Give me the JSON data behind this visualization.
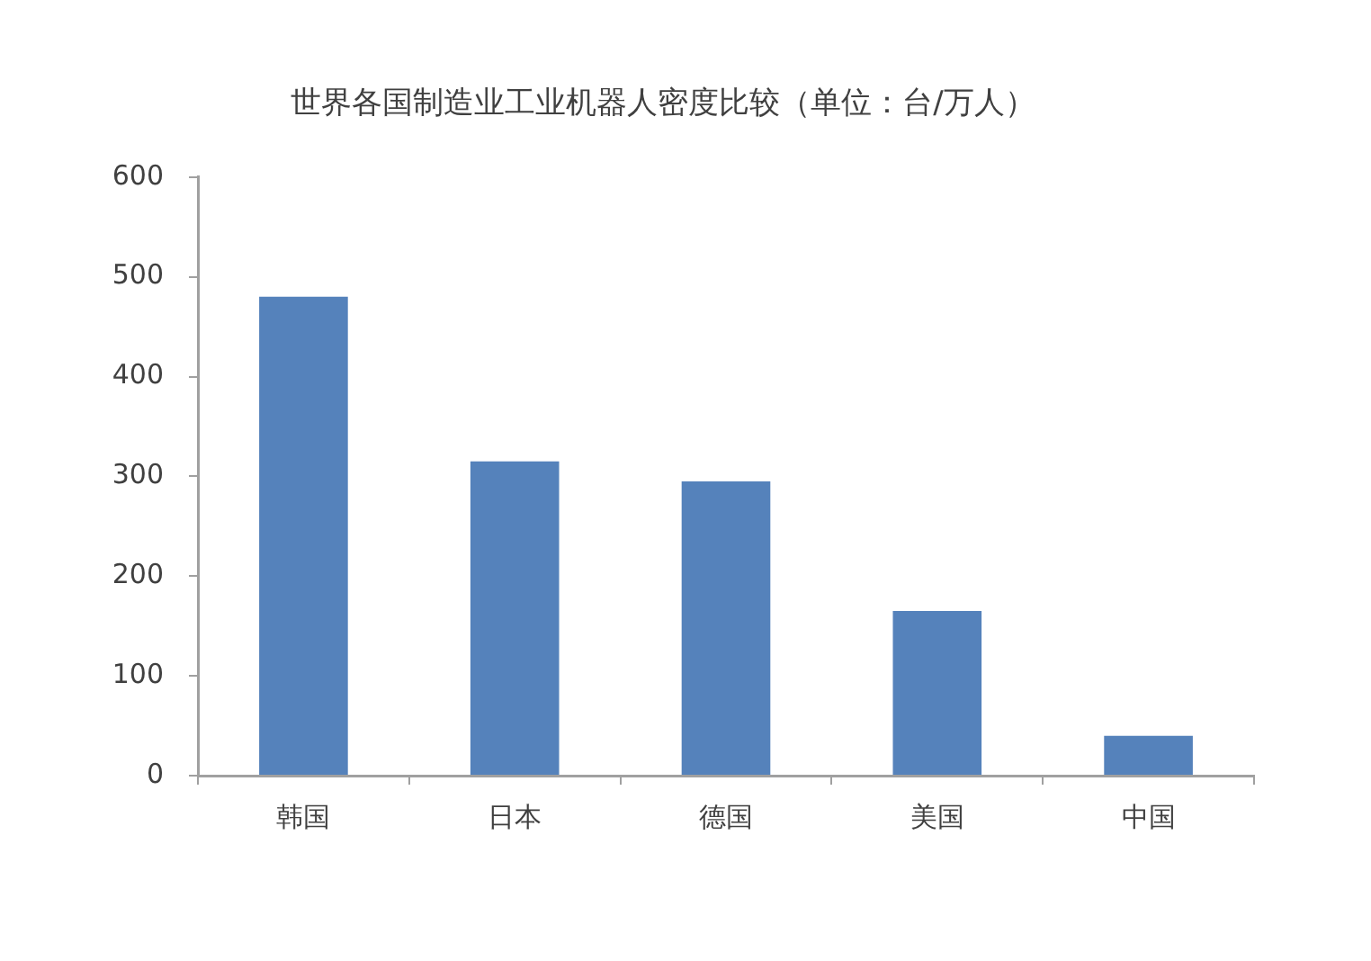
{
  "chart_data": {
    "type": "bar",
    "title": "世界各国制造业工业机器人密度比较（单位：台/万人）",
    "categories": [
      "韩国",
      "日本",
      "德国",
      "美国",
      "中国"
    ],
    "values": [
      480,
      315,
      295,
      165,
      40
    ],
    "color": "#5582bb",
    "ylim": [
      0,
      600
    ],
    "yticks": [
      0,
      100,
      200,
      300,
      400,
      500,
      600
    ],
    "grid": false
  }
}
